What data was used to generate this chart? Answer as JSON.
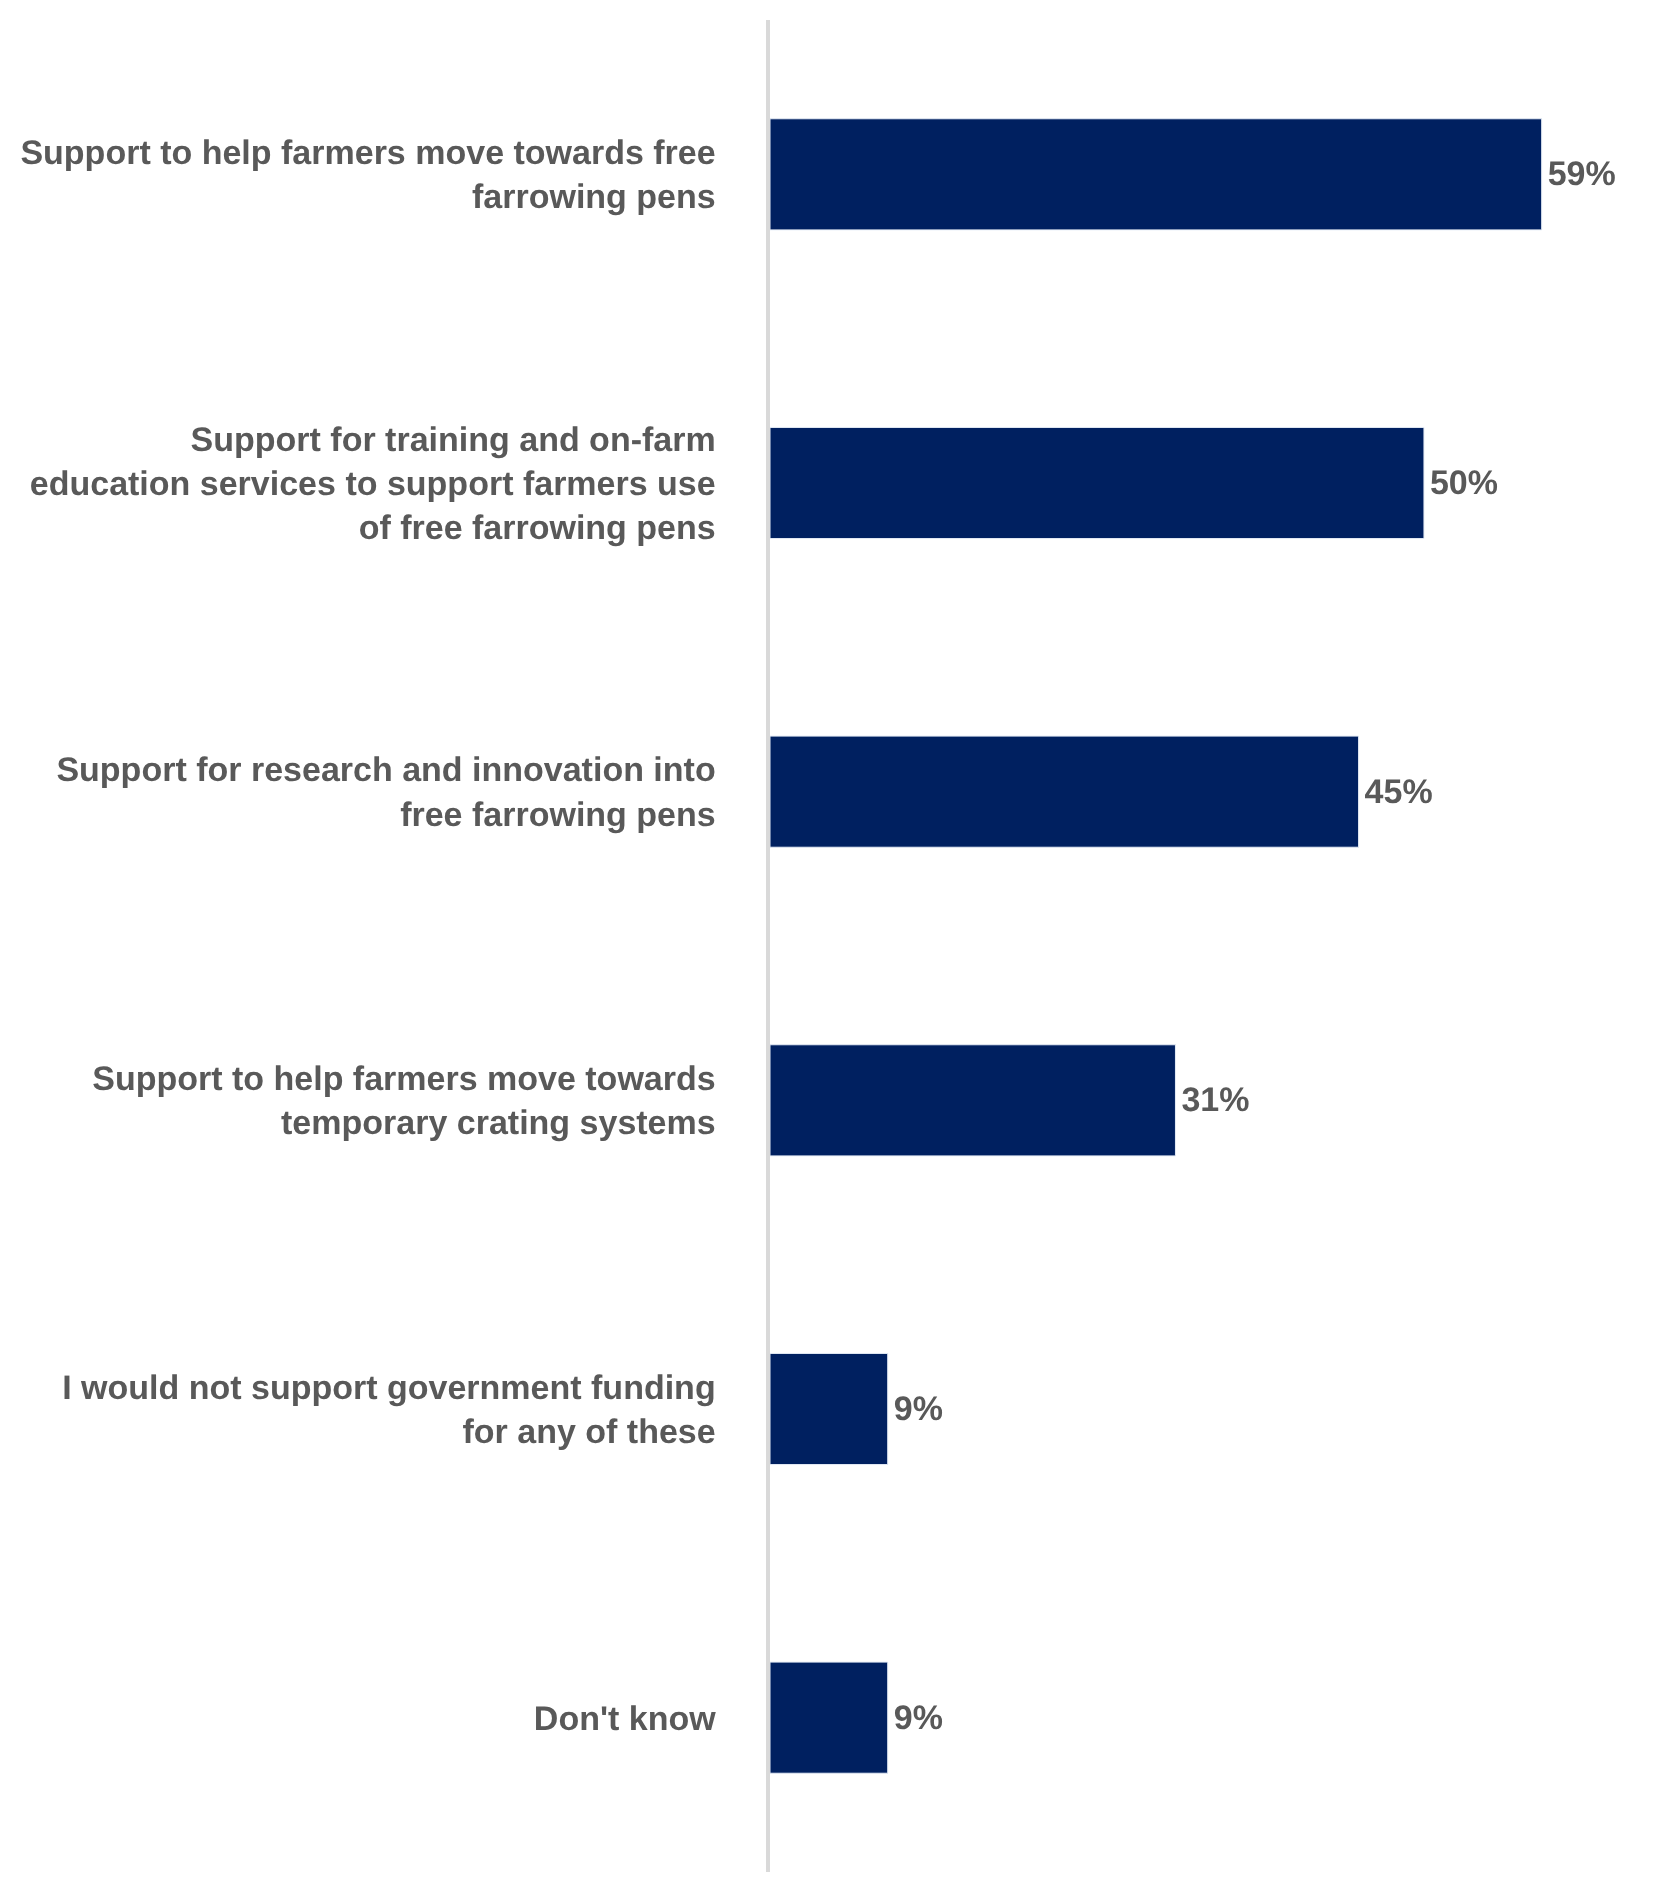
{
  "chart_data": {
    "type": "bar",
    "orientation": "horizontal",
    "categories": [
      "Support to help farmers move towards free farrowing pens",
      "Support for training and on-farm education services to support farmers use of free farrowing pens",
      "Support for research and innovation into free farrowing pens",
      "Support to help farmers move towards temporary crating systems",
      "I would not support government funding for any of these",
      "Don't know"
    ],
    "values": [
      59,
      50,
      45,
      31,
      9,
      9
    ],
    "value_labels": [
      "59%",
      "50%",
      "45%",
      "31%",
      "9%",
      "9%"
    ],
    "color": "#002060",
    "tick_labels": "y"
  }
}
